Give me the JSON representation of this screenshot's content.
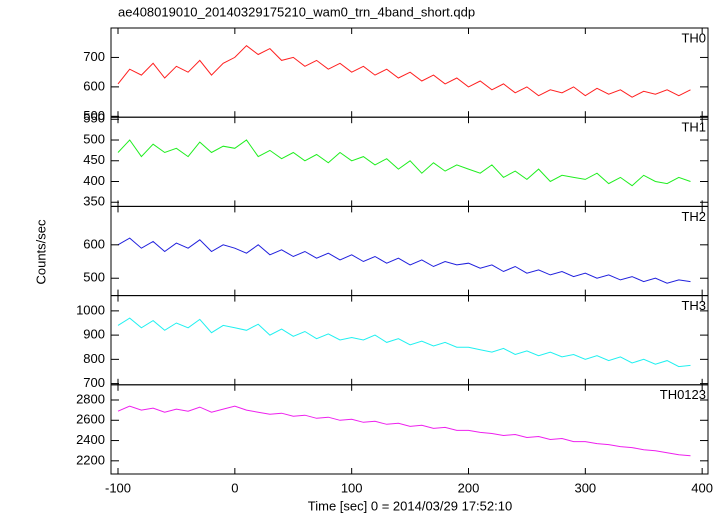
{
  "chart_data": {
    "type": "line",
    "title": "ae408019010_20140329175210_wam0_trn_4band_short.qdp",
    "xlabel": "Time [sec] 0 = 2014/03/29 17:52:10",
    "ylabel": "Counts/sec",
    "xlim": [
      -106,
      405
    ],
    "xticks": [
      -100,
      0,
      100,
      200,
      300,
      400
    ],
    "x": [
      -100,
      -90,
      -80,
      -70,
      -60,
      -50,
      -40,
      -30,
      -20,
      -10,
      0,
      10,
      20,
      30,
      40,
      50,
      60,
      70,
      80,
      90,
      100,
      110,
      120,
      130,
      140,
      150,
      160,
      170,
      180,
      190,
      200,
      210,
      220,
      230,
      240,
      250,
      260,
      270,
      280,
      290,
      300,
      310,
      320,
      330,
      340,
      350,
      360,
      370,
      380,
      390
    ],
    "series": [
      {
        "name": "TH0",
        "color": "#ff2020",
        "ylim": [
          497,
          800
        ],
        "yticks": [
          500,
          600,
          700
        ],
        "values": [
          610,
          660,
          640,
          680,
          630,
          670,
          650,
          690,
          640,
          680,
          700,
          740,
          710,
          730,
          690,
          700,
          670,
          690,
          660,
          680,
          650,
          670,
          640,
          660,
          630,
          650,
          620,
          640,
          610,
          630,
          600,
          620,
          590,
          610,
          580,
          600,
          570,
          590,
          580,
          600,
          570,
          595,
          575,
          590,
          565,
          585,
          575,
          590,
          570,
          590
        ]
      },
      {
        "name": "TH1",
        "color": "#20ee20",
        "ylim": [
          340,
          555
        ],
        "yticks": [
          350,
          400,
          450,
          500,
          550
        ],
        "values": [
          470,
          500,
          460,
          490,
          470,
          480,
          460,
          495,
          470,
          485,
          480,
          500,
          460,
          475,
          455,
          470,
          450,
          465,
          445,
          470,
          450,
          460,
          440,
          455,
          430,
          450,
          420,
          445,
          425,
          440,
          430,
          420,
          440,
          410,
          425,
          405,
          430,
          400,
          415,
          410,
          405,
          420,
          395,
          410,
          390,
          415,
          400,
          395,
          410,
          400
        ]
      },
      {
        "name": "TH2",
        "color": "#2020dd",
        "ylim": [
          448,
          715
        ],
        "yticks": [
          500,
          600
        ],
        "values": [
          600,
          620,
          590,
          610,
          580,
          605,
          590,
          615,
          580,
          600,
          590,
          575,
          600,
          570,
          585,
          565,
          580,
          560,
          575,
          555,
          570,
          550,
          565,
          545,
          560,
          540,
          555,
          535,
          550,
          540,
          545,
          530,
          540,
          520,
          535,
          515,
          525,
          510,
          520,
          505,
          515,
          500,
          510,
          495,
          505,
          490,
          500,
          485,
          495,
          490
        ]
      },
      {
        "name": "TH3",
        "color": "#20f0f0",
        "ylim": [
          695,
          1063
        ],
        "yticks": [
          700,
          800,
          900,
          1000
        ],
        "values": [
          940,
          970,
          930,
          960,
          920,
          950,
          930,
          965,
          910,
          940,
          930,
          920,
          945,
          900,
          925,
          895,
          915,
          885,
          905,
          880,
          890,
          880,
          900,
          870,
          885,
          860,
          875,
          855,
          870,
          850,
          850,
          840,
          830,
          845,
          820,
          835,
          815,
          830,
          810,
          820,
          800,
          815,
          795,
          810,
          785,
          800,
          780,
          795,
          770,
          775
        ]
      },
      {
        "name": "TH0123",
        "color": "#ee20ee",
        "ylim": [
          2070,
          2950
        ],
        "yticks": [
          2200,
          2400,
          2600,
          2800
        ],
        "values": [
          2690,
          2740,
          2700,
          2720,
          2680,
          2710,
          2690,
          2730,
          2680,
          2710,
          2740,
          2700,
          2680,
          2660,
          2670,
          2640,
          2650,
          2620,
          2630,
          2600,
          2610,
          2580,
          2590,
          2560,
          2570,
          2540,
          2550,
          2520,
          2530,
          2500,
          2500,
          2480,
          2470,
          2450,
          2460,
          2430,
          2440,
          2410,
          2420,
          2390,
          2390,
          2370,
          2360,
          2340,
          2330,
          2310,
          2300,
          2280,
          2260,
          2250
        ]
      }
    ]
  }
}
